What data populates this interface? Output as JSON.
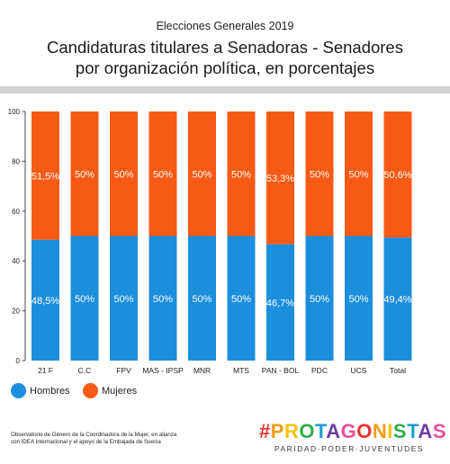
{
  "header": {
    "kicker": "Elecciones Generales 2019",
    "title_line1": "Candidaturas titulares a Senadoras - Senadores",
    "title_line2": "por organización política, en porcentajes"
  },
  "chart_data": {
    "type": "bar",
    "stacked": true,
    "categories": [
      "21 F",
      "C.C",
      "FPV",
      "MAS - IPSP",
      "MNR",
      "MTS",
      "PAN - BOL",
      "PDC",
      "UCS",
      "Total"
    ],
    "series": [
      {
        "name": "Hombres",
        "values": [
          48.5,
          50,
          50,
          50,
          50,
          50,
          46.7,
          50,
          50,
          49.4
        ],
        "labels": [
          "48,5%",
          "50%",
          "50%",
          "50%",
          "50%",
          "50%",
          "46,7%",
          "50%",
          "50%",
          "49,4%"
        ],
        "color": "#1b8ede"
      },
      {
        "name": "Mujeres",
        "values": [
          51.5,
          50,
          50,
          50,
          50,
          50,
          53.3,
          50,
          50,
          50.6
        ],
        "labels": [
          "51,5%",
          "50%",
          "50%",
          "50%",
          "50%",
          "50%",
          "53,3%",
          "50%",
          "50%",
          "50,6%"
        ],
        "color": "#f75a14"
      }
    ],
    "yticks": [
      "0",
      "20",
      "40",
      "60",
      "80",
      "100"
    ],
    "ylim": [
      0,
      100
    ],
    "grid": false,
    "legend": "bottom-left"
  },
  "legend": {
    "hombres_label": "Hombres",
    "mujeres_label": "Mujeres",
    "hombres_color": "#1b8ede",
    "mujeres_color": "#f75a14"
  },
  "footer": {
    "note_line1": "Observatorio de Género de la Coordinadora de la Mujer, en alianza",
    "note_line2": "con IDEA Internacional y el apoyo de la Embajada de Suecia",
    "brand_name": "#PROTAGONISTAS",
    "brand_tagline": "PARIDAD·PODER·JUVENTUDES",
    "brand_colors": [
      "#e8322d",
      "#f39c12",
      "#f4c20d",
      "#2eae4a",
      "#1f9ed1",
      "#6b3fa0",
      "#e94e9a"
    ]
  }
}
